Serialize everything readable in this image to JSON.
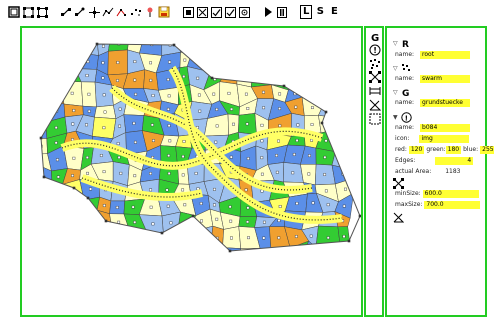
{
  "toolbar": {
    "letters": {
      "L": "L",
      "S": "S",
      "E": "E"
    }
  },
  "tree": {
    "root": {
      "label_name": "name:",
      "name": "root"
    },
    "swarm": {
      "label_name": "name:",
      "name": "swarm"
    },
    "grund": {
      "label_name": "name:",
      "name": "grundstuecke"
    },
    "item": {
      "label_name": "name:",
      "name": "b084",
      "label_icon": "icon:",
      "icon": "img",
      "label_red": "red:",
      "red": "120",
      "label_green": "green:",
      "green": "180",
      "label_blue": "blue:",
      "blue": "255",
      "label_edges": "Edges:",
      "edges": "4",
      "label_area": "actual Area:",
      "area": "1183"
    },
    "size": {
      "label_min": "minSize:",
      "min": "600.0",
      "label_max": "maxSize:",
      "max": "700.0"
    }
  },
  "colors": {
    "panel_border": "#22cc22",
    "field_bg": "#ffff33",
    "cell_blue": "#5b8fe8",
    "cell_lightblue": "#9ec1ef",
    "cell_green": "#33cc33",
    "cell_yellow": "#ffff66",
    "cell_cream": "#ffffc8",
    "cell_orange": "#f0a030"
  }
}
